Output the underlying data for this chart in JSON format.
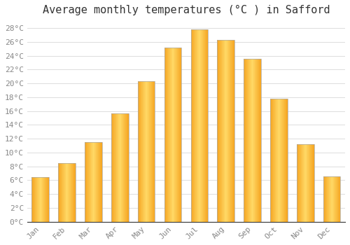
{
  "title": "Average monthly temperatures (°C ) in Safford",
  "months": [
    "Jan",
    "Feb",
    "Mar",
    "Apr",
    "May",
    "Jun",
    "Jul",
    "Aug",
    "Sep",
    "Oct",
    "Nov",
    "Dec"
  ],
  "values": [
    6.5,
    8.5,
    11.5,
    15.7,
    20.3,
    25.2,
    27.8,
    26.3,
    23.5,
    17.8,
    11.2,
    6.6
  ],
  "bar_color_dark": "#F5A623",
  "bar_color_light": "#FFD966",
  "bar_edge_color": "#AAAAAA",
  "background_color": "#FFFFFF",
  "grid_color": "#DDDDDD",
  "ytick_labels": [
    "0°C",
    "2°C",
    "4°C",
    "6°C",
    "8°C",
    "10°C",
    "12°C",
    "14°C",
    "16°C",
    "18°C",
    "20°C",
    "22°C",
    "24°C",
    "26°C",
    "28°C"
  ],
  "ytick_values": [
    0,
    2,
    4,
    6,
    8,
    10,
    12,
    14,
    16,
    18,
    20,
    22,
    24,
    26,
    28
  ],
  "ylim": [
    0,
    29
  ],
  "title_fontsize": 11,
  "tick_fontsize": 8,
  "tick_color": "#888888",
  "font_family": "monospace",
  "bar_width": 0.65,
  "gradient_slices": 40
}
